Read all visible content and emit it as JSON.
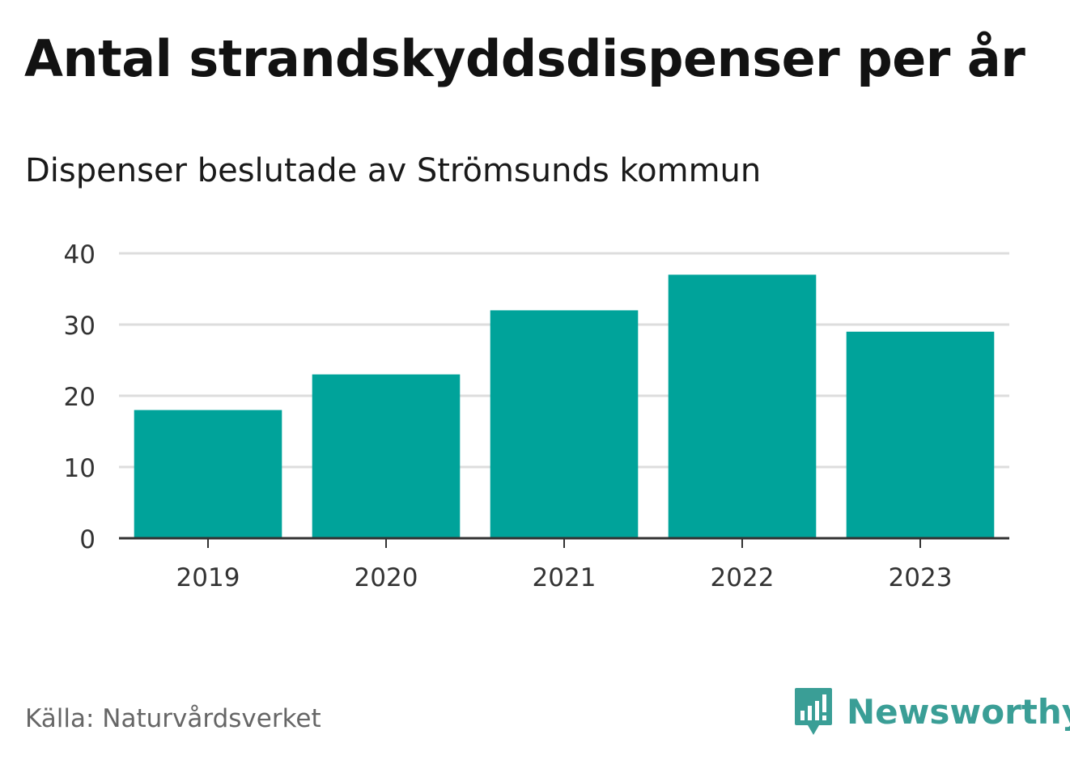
{
  "header": {
    "title": "Antal strandskyddsdispenser per år",
    "subtitle": "Dispenser beslutade av Strömsunds kommun"
  },
  "footer": {
    "source": "Källa: Naturvårdsverket",
    "brand": "Newsworthy",
    "brand_icon": "newsworthy-logo-icon"
  },
  "colors": {
    "bar": "#00a39a",
    "grid": "#dddddd",
    "axis": "#333333",
    "brand": "#3a9e96"
  },
  "chart_data": {
    "type": "bar",
    "title": "Antal strandskyddsdispenser per år",
    "subtitle": "Dispenser beslutade av Strömsunds kommun",
    "categories": [
      "2019",
      "2020",
      "2021",
      "2022",
      "2023"
    ],
    "values": [
      18,
      23,
      32,
      37,
      29
    ],
    "xlabel": "",
    "ylabel": "",
    "ylim": [
      0,
      40
    ],
    "yticks": [
      0,
      10,
      20,
      30,
      40
    ],
    "grid": true,
    "legend": "none"
  }
}
